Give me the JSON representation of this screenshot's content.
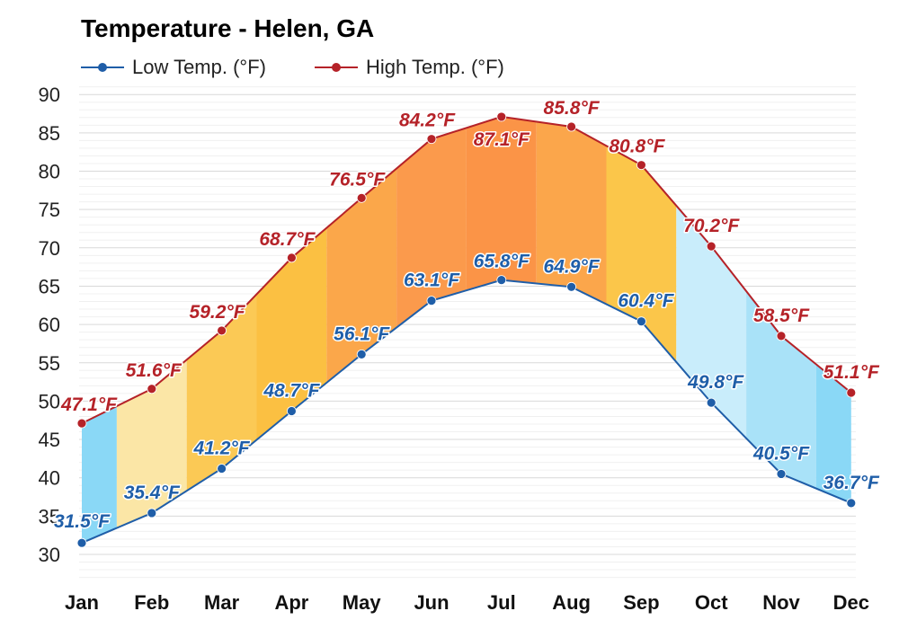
{
  "chart_data": {
    "type": "line",
    "title": "Temperature - Helen, GA",
    "categories": [
      "Jan",
      "Feb",
      "Mar",
      "Apr",
      "May",
      "Jun",
      "Jul",
      "Aug",
      "Sep",
      "Oct",
      "Nov",
      "Dec"
    ],
    "series": [
      {
        "name": "Low Temp. (°F)",
        "color": "#1f5ea8",
        "values": [
          31.5,
          35.4,
          41.2,
          48.7,
          56.1,
          63.1,
          65.8,
          64.9,
          60.4,
          49.8,
          40.5,
          36.7
        ],
        "labels": [
          "31.5°F",
          "35.4°F",
          "41.2°F",
          "48.7°F",
          "56.1°F",
          "63.1°F",
          "65.8°F",
          "64.9°F",
          "60.4°F",
          "49.8°F",
          "40.5°F",
          "36.7°F"
        ]
      },
      {
        "name": "High Temp. (°F)",
        "color": "#b52228",
        "values": [
          47.1,
          51.6,
          59.2,
          68.7,
          76.5,
          84.2,
          87.1,
          85.8,
          80.8,
          70.2,
          58.5,
          51.1
        ],
        "labels": [
          "47.1°F",
          "51.6°F",
          "59.2°F",
          "68.7°F",
          "76.5°F",
          "84.2°F",
          "87.1°F",
          "85.8°F",
          "80.8°F",
          "70.2°F",
          "58.5°F",
          "51.1°F"
        ]
      }
    ],
    "yticks": [
      "30",
      "35",
      "40",
      "45",
      "50",
      "55",
      "60",
      "65",
      "70",
      "75",
      "80",
      "85",
      "90"
    ],
    "ylim": [
      27,
      91
    ],
    "grid": true,
    "legend_position": "top-left",
    "band_colors": [
      "#8ad8f6",
      "#fbe6a6",
      "#fbc955",
      "#fbc042",
      "#fba74a",
      "#fb9a4c",
      "#fb9447",
      "#fba64b",
      "#fbc64a",
      "#c9edfb",
      "#a9e2f8",
      "#8ad8f6"
    ]
  }
}
